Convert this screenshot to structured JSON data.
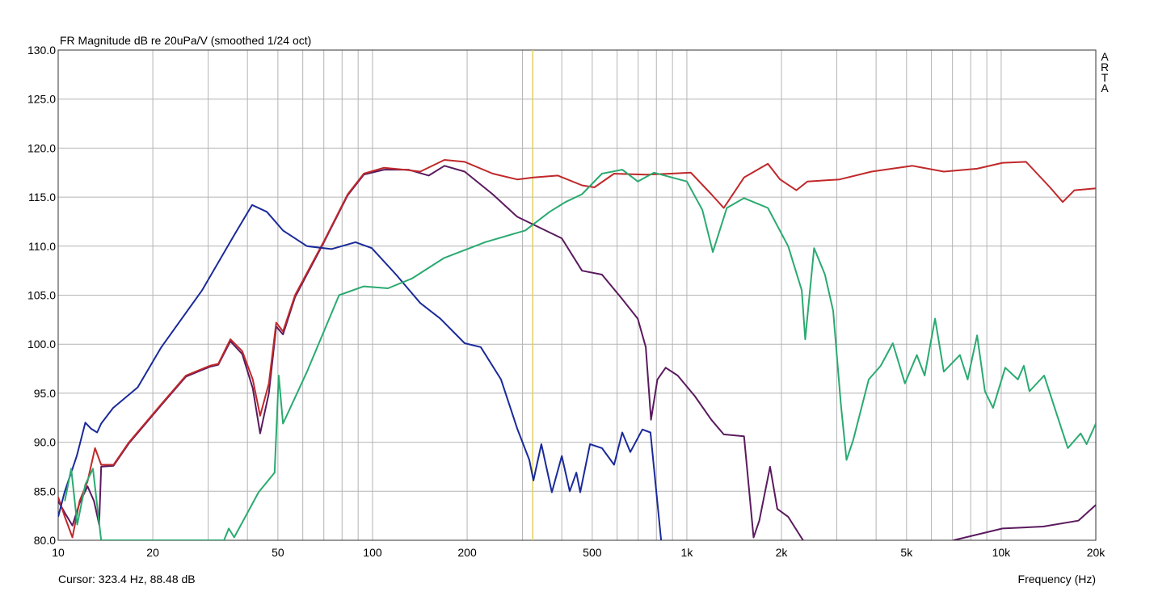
{
  "chart_data": {
    "type": "line",
    "title": "FR Magnitude dB re 20uPa/V (smoothed 1/24 oct)",
    "xlabel": "Frequency (Hz)",
    "ylabel": "",
    "x_scale": "log",
    "xlim": [
      10,
      20000
    ],
    "ylim": [
      80,
      130
    ],
    "grid": true,
    "watermark": "ARTA",
    "x_ticks": [
      {
        "value": 10,
        "label": "10"
      },
      {
        "value": 20,
        "label": "20"
      },
      {
        "value": 50,
        "label": "50"
      },
      {
        "value": 100,
        "label": "100"
      },
      {
        "value": 200,
        "label": "200"
      },
      {
        "value": 500,
        "label": "500"
      },
      {
        "value": 1000,
        "label": "1k"
      },
      {
        "value": 2000,
        "label": "2k"
      },
      {
        "value": 5000,
        "label": "5k"
      },
      {
        "value": 10000,
        "label": "10k"
      },
      {
        "value": 20000,
        "label": "20k"
      }
    ],
    "y_ticks": [
      {
        "value": 130,
        "label": "130.0"
      },
      {
        "value": 125,
        "label": "125.0"
      },
      {
        "value": 120,
        "label": "120.0"
      },
      {
        "value": 115,
        "label": "115.0"
      },
      {
        "value": 110,
        "label": "110.0"
      },
      {
        "value": 105,
        "label": "105.0"
      },
      {
        "value": 100,
        "label": "100.0"
      },
      {
        "value": 95,
        "label": "95.0"
      },
      {
        "value": 90,
        "label": "90.0"
      },
      {
        "value": 85,
        "label": "85.0"
      },
      {
        "value": 80,
        "label": "80.0"
      }
    ],
    "cursor": {
      "frequency": 323.4,
      "level": 88.48,
      "color": "#e0d060"
    },
    "cursor_text": "Cursor: 323.4 Hz, 88.48 dB",
    "series": [
      {
        "color": "#5a1a5e",
        "points": [
          [
            10,
            84.0
          ],
          [
            10.5,
            82.8
          ],
          [
            11.1,
            81.5
          ],
          [
            11.7,
            83.8
          ],
          [
            12.4,
            85.5
          ],
          [
            13.0,
            84.0
          ],
          [
            13.5,
            81.6
          ],
          [
            13.7,
            87.5
          ],
          [
            15,
            87.6
          ],
          [
            16.8,
            89.9
          ],
          [
            21.3,
            93.8
          ],
          [
            25.5,
            96.7
          ],
          [
            30.4,
            97.7
          ],
          [
            32.3,
            97.9
          ],
          [
            35.3,
            100.3
          ],
          [
            38.5,
            99.0
          ],
          [
            41.6,
            95.5
          ],
          [
            43.9,
            90.9
          ],
          [
            46.8,
            95.0
          ],
          [
            49.4,
            101.8
          ],
          [
            51.9,
            101.0
          ],
          [
            56.7,
            104.8
          ],
          [
            69.8,
            110.3
          ],
          [
            83.4,
            115.2
          ],
          [
            93.8,
            117.3
          ],
          [
            108.8,
            117.8
          ],
          [
            130,
            117.8
          ],
          [
            151,
            117.2
          ],
          [
            169.4,
            118.2
          ],
          [
            196.4,
            117.6
          ],
          [
            241,
            115.3
          ],
          [
            288.5,
            113.0
          ],
          [
            325,
            112.2
          ],
          [
            400,
            110.8
          ],
          [
            464,
            107.5
          ],
          [
            537,
            107.1
          ],
          [
            623,
            104.6
          ],
          [
            698,
            102.6
          ],
          [
            740,
            99.7
          ],
          [
            769,
            92.3
          ],
          [
            806,
            96.4
          ],
          [
            856,
            97.6
          ],
          [
            935,
            96.8
          ],
          [
            1060,
            94.7
          ],
          [
            1196,
            92.3
          ],
          [
            1310,
            90.8
          ],
          [
            1520,
            90.6
          ],
          [
            1630,
            80.3
          ],
          [
            1700,
            82.0
          ],
          [
            1840,
            87.5
          ],
          [
            1940,
            83.2
          ],
          [
            2100,
            82.4
          ],
          [
            2310,
            80.3
          ],
          [
            2400,
            79.5
          ],
          [
            6900,
            79.5
          ],
          [
            7050,
            80.0
          ],
          [
            10100,
            81.2
          ],
          [
            13600,
            81.4
          ],
          [
            17600,
            82.0
          ],
          [
            20000,
            83.6
          ]
        ]
      },
      {
        "color": "#c0282a",
        "points": [
          [
            10,
            84.4
          ],
          [
            10.5,
            82.4
          ],
          [
            11.1,
            80.3
          ],
          [
            11.7,
            84.0
          ],
          [
            12.4,
            86.0
          ],
          [
            13.1,
            89.4
          ],
          [
            13.7,
            87.7
          ],
          [
            15,
            87.7
          ],
          [
            16.8,
            90.0
          ],
          [
            21.3,
            93.9
          ],
          [
            25.5,
            96.8
          ],
          [
            30.4,
            97.8
          ],
          [
            32.3,
            98.0
          ],
          [
            35.3,
            100.5
          ],
          [
            38.5,
            99.3
          ],
          [
            41.6,
            96.4
          ],
          [
            43.9,
            92.7
          ],
          [
            46.8,
            96.0
          ],
          [
            49.4,
            102.2
          ],
          [
            51.9,
            101.3
          ],
          [
            56.7,
            105.0
          ],
          [
            69.8,
            110.4
          ],
          [
            83.4,
            115.3
          ],
          [
            93.8,
            117.4
          ],
          [
            108.8,
            118.0
          ],
          [
            126,
            117.8
          ],
          [
            141.8,
            117.6
          ],
          [
            169.4,
            118.8
          ],
          [
            196.4,
            118.6
          ],
          [
            241.4,
            117.4
          ],
          [
            288.5,
            116.8
          ],
          [
            325,
            117.0
          ],
          [
            389,
            117.2
          ],
          [
            464,
            116.2
          ],
          [
            508,
            116.0
          ],
          [
            587,
            117.4
          ],
          [
            740,
            117.3
          ],
          [
            889,
            117.4
          ],
          [
            1030,
            117.5
          ],
          [
            1196,
            115.3
          ],
          [
            1310,
            113.9
          ],
          [
            1520,
            117.0
          ],
          [
            1810,
            118.4
          ],
          [
            1980,
            116.8
          ],
          [
            2230,
            115.7
          ],
          [
            2420,
            116.6
          ],
          [
            3060,
            116.8
          ],
          [
            3870,
            117.6
          ],
          [
            5220,
            118.2
          ],
          [
            6570,
            117.6
          ],
          [
            8380,
            117.9
          ],
          [
            10100,
            118.5
          ],
          [
            12000,
            118.6
          ],
          [
            14300,
            116.0
          ],
          [
            15700,
            114.5
          ],
          [
            17100,
            115.7
          ],
          [
            20000,
            115.9
          ]
        ]
      },
      {
        "color": "#1a2a9a",
        "points": [
          [
            10,
            82.4
          ],
          [
            10.48,
            84.9
          ],
          [
            11.46,
            88.6
          ],
          [
            12.2,
            92.0
          ],
          [
            12.7,
            91.4
          ],
          [
            13.3,
            91.0
          ],
          [
            13.7,
            91.9
          ],
          [
            14.96,
            93.5
          ],
          [
            17.9,
            95.6
          ],
          [
            21.3,
            99.7
          ],
          [
            28.7,
            105.5
          ],
          [
            36.4,
            111.2
          ],
          [
            41.4,
            114.2
          ],
          [
            46.1,
            113.5
          ],
          [
            51.9,
            111.6
          ],
          [
            61.9,
            110.0
          ],
          [
            74,
            109.7
          ],
          [
            88.3,
            110.4
          ],
          [
            99.4,
            109.8
          ],
          [
            118.8,
            107.1
          ],
          [
            141.8,
            104.2
          ],
          [
            164.4,
            102.6
          ],
          [
            196.4,
            100.1
          ],
          [
            220.9,
            99.7
          ],
          [
            256.3,
            96.4
          ],
          [
            288.5,
            91.4
          ],
          [
            315.3,
            88.2
          ],
          [
            325,
            86.1
          ],
          [
            344.5,
            89.8
          ],
          [
            372,
            84.9
          ],
          [
            400,
            88.6
          ],
          [
            424,
            85.0
          ],
          [
            445,
            86.9
          ],
          [
            458,
            84.9
          ],
          [
            492,
            89.8
          ],
          [
            537,
            89.4
          ],
          [
            587,
            87.7
          ],
          [
            623,
            91.0
          ],
          [
            661,
            89.0
          ],
          [
            722,
            91.3
          ],
          [
            766,
            91.0
          ],
          [
            828,
            80.0
          ]
        ]
      },
      {
        "color": "#2aaa70",
        "points": [
          [
            10.5,
            84.0
          ],
          [
            11,
            87.3
          ],
          [
            11.5,
            81.6
          ],
          [
            12.2,
            85.7
          ],
          [
            12.9,
            87.3
          ],
          [
            13.7,
            80.0
          ],
          [
            33.7,
            80.0
          ],
          [
            34.9,
            81.2
          ],
          [
            36.3,
            80.3
          ],
          [
            43.4,
            84.9
          ],
          [
            48.8,
            86.9
          ],
          [
            50.3,
            96.8
          ],
          [
            51.9,
            91.9
          ],
          [
            61.9,
            97.2
          ],
          [
            78.3,
            105.0
          ],
          [
            93.8,
            105.9
          ],
          [
            112,
            105.7
          ],
          [
            133.5,
            106.7
          ],
          [
            169,
            108.8
          ],
          [
            228,
            110.4
          ],
          [
            306,
            111.6
          ],
          [
            366,
            113.5
          ],
          [
            411,
            114.5
          ],
          [
            464,
            115.3
          ],
          [
            537,
            117.4
          ],
          [
            623,
            117.8
          ],
          [
            698,
            116.6
          ],
          [
            786,
            117.5
          ],
          [
            1000,
            116.6
          ],
          [
            1120,
            113.7
          ],
          [
            1210,
            109.4
          ],
          [
            1340,
            113.9
          ],
          [
            1520,
            114.9
          ],
          [
            1810,
            113.9
          ],
          [
            2100,
            110.0
          ],
          [
            2320,
            105.5
          ],
          [
            2380,
            100.5
          ],
          [
            2540,
            109.8
          ],
          [
            2750,
            107.1
          ],
          [
            2920,
            103.4
          ],
          [
            3090,
            93.9
          ],
          [
            3220,
            88.2
          ],
          [
            3380,
            90.2
          ],
          [
            3790,
            96.4
          ],
          [
            4140,
            97.8
          ],
          [
            4520,
            100.1
          ],
          [
            4940,
            96.0
          ],
          [
            5390,
            98.9
          ],
          [
            5710,
            96.8
          ],
          [
            6160,
            102.6
          ],
          [
            6570,
            97.2
          ],
          [
            7390,
            98.9
          ],
          [
            7820,
            96.4
          ],
          [
            8380,
            100.9
          ],
          [
            8880,
            95.2
          ],
          [
            9420,
            93.5
          ],
          [
            10300,
            97.6
          ],
          [
            11300,
            96.4
          ],
          [
            11800,
            97.8
          ],
          [
            12300,
            95.2
          ],
          [
            13700,
            96.8
          ],
          [
            14800,
            93.5
          ],
          [
            16300,
            89.4
          ],
          [
            17900,
            90.9
          ],
          [
            18700,
            89.8
          ],
          [
            20000,
            91.9
          ]
        ]
      }
    ]
  }
}
